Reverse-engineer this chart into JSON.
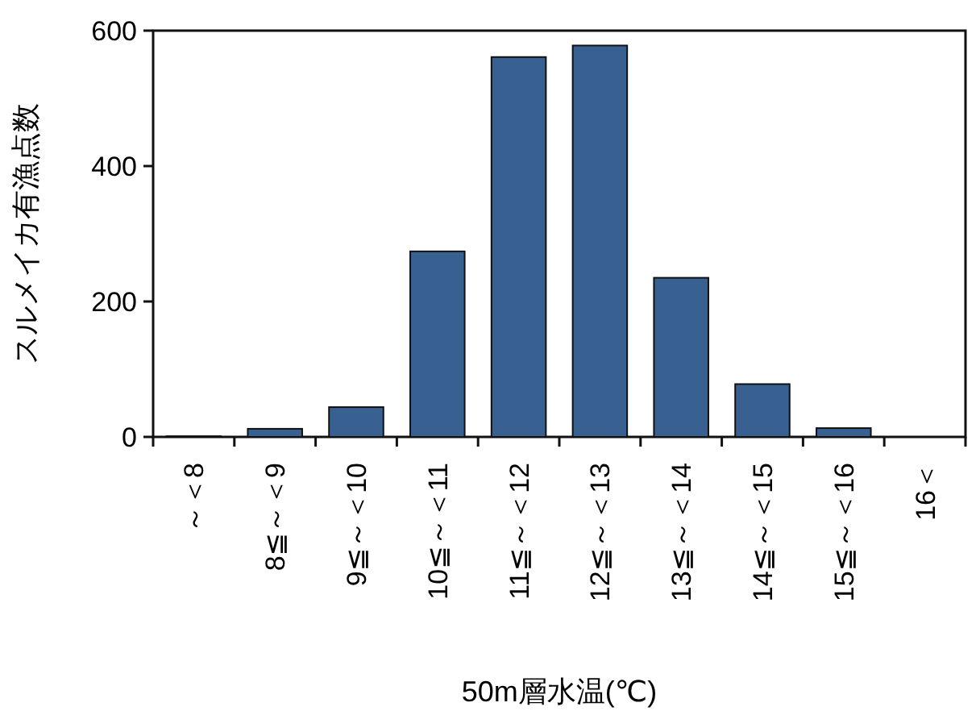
{
  "chart_data": {
    "type": "bar",
    "xlabel": "50m層水温(℃)",
    "ylabel": "スルメイカ有漁点数",
    "categories": [
      "～＜8",
      "8≦～＜9",
      "9≦～＜10",
      "10≦～＜11",
      "11≦～＜12",
      "12≦～＜13",
      "13≦～＜14",
      "14≦～＜15",
      "15≦～＜16",
      "16＜"
    ],
    "values": [
      1,
      12,
      44,
      274,
      561,
      578,
      235,
      78,
      13,
      0
    ],
    "color": "#386192",
    "ylim": [
      0,
      600
    ],
    "yticks": [
      0,
      200,
      400,
      600
    ],
    "grid": false
  }
}
